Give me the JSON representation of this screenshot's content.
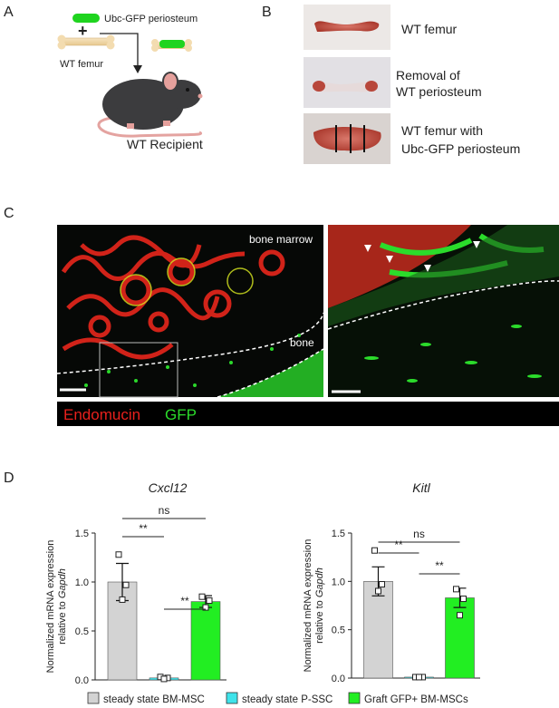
{
  "panels": {
    "a": {
      "label": "A",
      "periosteum": "Ubc-GFP periosteum",
      "plus": "+",
      "femur": "WT femur",
      "recipient": "WT Recipient"
    },
    "b": {
      "label": "B",
      "captions": [
        [
          "WT femur"
        ],
        [
          "Removal of",
          "WT periosteum"
        ],
        [
          "WT femur with",
          "Ubc-GFP periosteum"
        ]
      ]
    },
    "c": {
      "label": "C",
      "bone_marrow": "bone marrow",
      "bone": "bone",
      "stains": [
        {
          "name": "Endomucin",
          "color": "#e8201c"
        },
        {
          "name": "GFP",
          "color": "#2bdc2b"
        }
      ]
    },
    "d": {
      "label": "D"
    }
  },
  "legend": [
    {
      "name": "steady state BM-MSC",
      "color": "#d3d3d3"
    },
    {
      "name": "steady state P-SSC",
      "color": "#3fe3ea"
    },
    {
      "name": "Graft GFP+ BM-MSCs",
      "color": "#22ee22"
    }
  ],
  "chart_data": [
    {
      "type": "bar",
      "title": "Cxcl12",
      "ylabel": [
        "Normalized mRNA expression",
        "relative to "
      ],
      "ylabel_italic": "Gapdh",
      "categories": [
        null,
        null,
        null
      ],
      "values": [
        1.0,
        0.02,
        0.8
      ],
      "errors": [
        0.19,
        0.01,
        0.06
      ],
      "points": [
        [
          1.28,
          0.97,
          0.82
        ],
        [
          0.03,
          0.02,
          0.01
        ],
        [
          0.85,
          0.81,
          0.74
        ]
      ],
      "ylim": [
        0,
        1.5
      ],
      "yticks": [
        {
          "value": 0,
          "label": "0.0"
        },
        0.5,
        {
          "value": 1,
          "label": "1.0"
        },
        1.5
      ],
      "brackets": [
        {
          "label": "ns"
        },
        {
          "label": "**"
        },
        {
          "label": "**"
        }
      ]
    },
    {
      "type": "bar",
      "title": "Kitl",
      "ylabel": [
        "Normalized mRNA expression",
        "relative to "
      ],
      "ylabel_italic": "Gapdh",
      "categories": [
        null,
        null,
        null
      ],
      "values": [
        1.0,
        0.01,
        0.83
      ],
      "errors": [
        0.15,
        0.005,
        0.1
      ],
      "points": [
        [
          1.32,
          0.97,
          0.9
        ],
        [
          0.01,
          0.01,
          0.01
        ],
        [
          0.92,
          0.82,
          0.65
        ]
      ],
      "ylim": [
        0,
        1.5
      ],
      "yticks": [
        {
          "value": 0,
          "label": "0.0"
        },
        0.5,
        {
          "value": 1,
          "label": "1.0"
        },
        1.5
      ],
      "brackets": [
        {
          "label": "ns"
        },
        {
          "label": "**"
        },
        {
          "label": "**"
        }
      ]
    }
  ]
}
